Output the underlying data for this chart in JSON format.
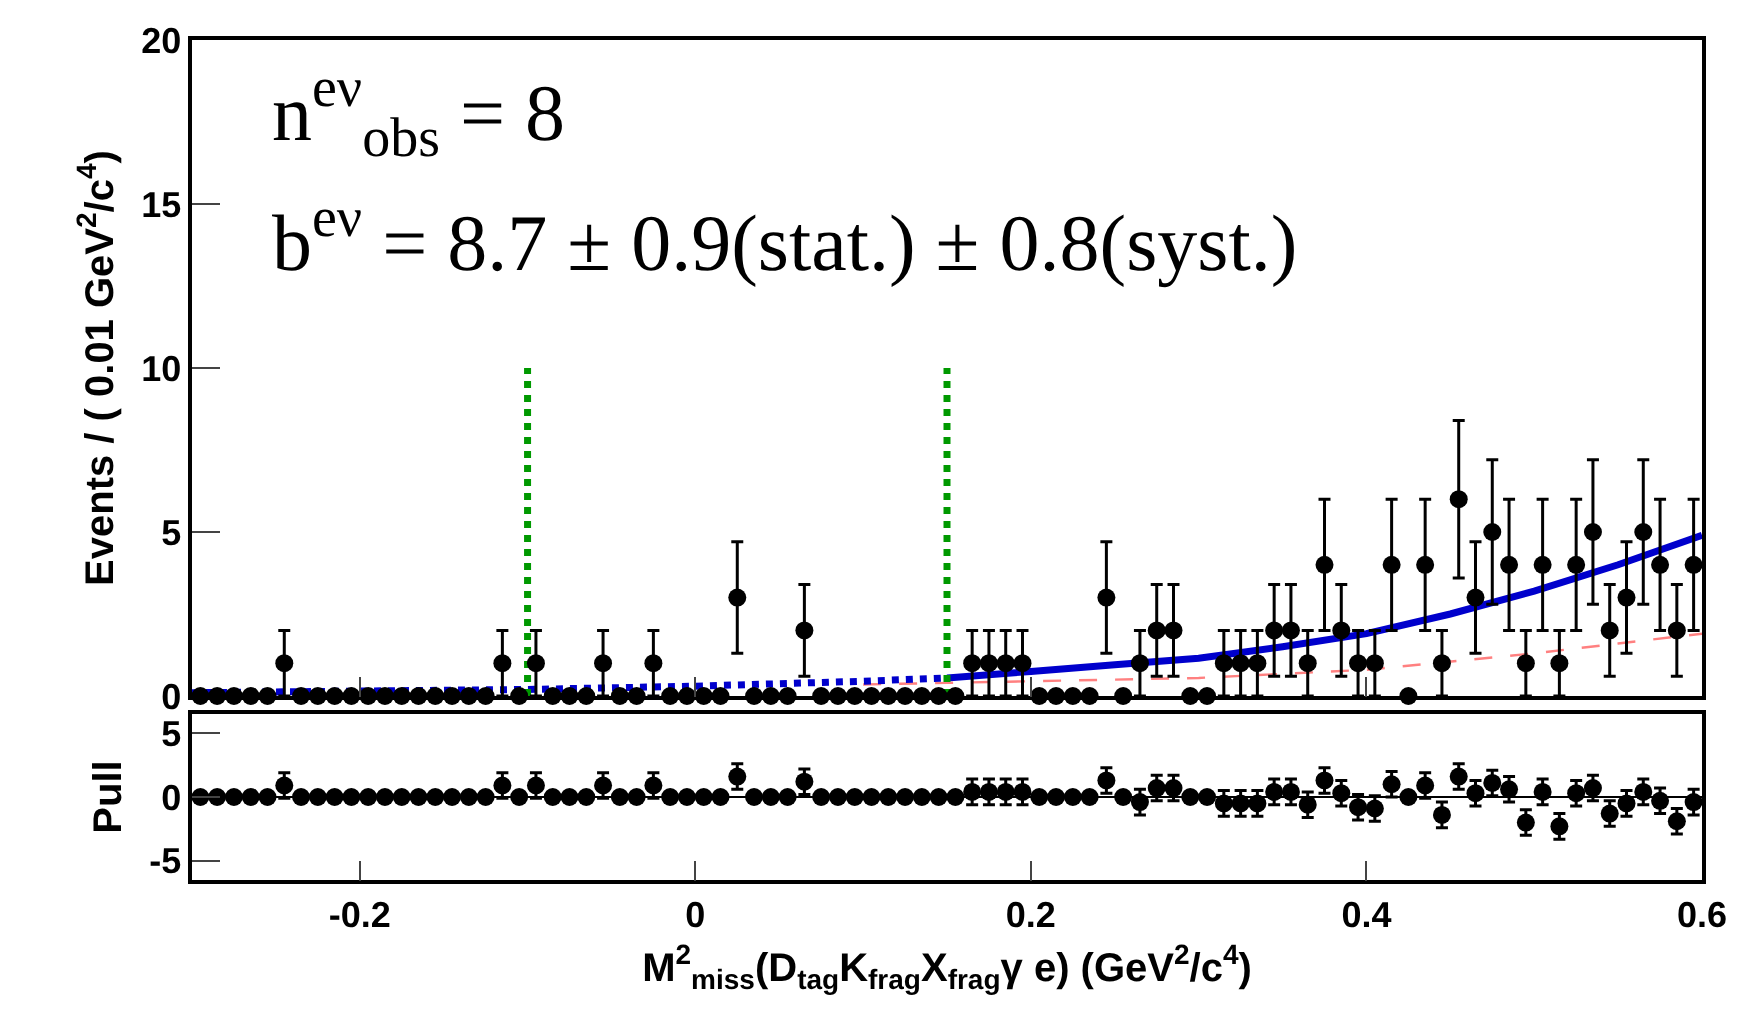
{
  "chart_data": [
    {
      "type": "scatter",
      "ylabel": "Events / ( 0.01 GeV$^{2}$/c$^{4}$)",
      "annotations": [
        "n$^{eν}$$_{obs}$ = 8",
        "b$^{eν}$ = 8.7 ± 0.9(stat.) ± 0.8(syst.)"
      ],
      "x": [
        -0.295,
        -0.285,
        -0.275,
        -0.265,
        -0.255,
        -0.245,
        -0.235,
        -0.225,
        -0.215,
        -0.205,
        -0.195,
        -0.185,
        -0.175,
        -0.165,
        -0.155,
        -0.145,
        -0.135,
        -0.125,
        -0.115,
        -0.105,
        -0.095,
        -0.085,
        -0.075,
        -0.065,
        -0.055,
        -0.045,
        -0.035,
        -0.025,
        -0.015,
        -0.005,
        0.005,
        0.015,
        0.025,
        0.035,
        0.045,
        0.055,
        0.065,
        0.075,
        0.085,
        0.095,
        0.105,
        0.115,
        0.125,
        0.135,
        0.145,
        0.155,
        0.165,
        0.175,
        0.185,
        0.195,
        0.205,
        0.215,
        0.225,
        0.235,
        0.245,
        0.255,
        0.265,
        0.275,
        0.285,
        0.295,
        0.305,
        0.315,
        0.325,
        0.335,
        0.345,
        0.355,
        0.365,
        0.375,
        0.385,
        0.395,
        0.405,
        0.415,
        0.425,
        0.435,
        0.445,
        0.455,
        0.465,
        0.475,
        0.485,
        0.495,
        0.505,
        0.515,
        0.525,
        0.535,
        0.545,
        0.555,
        0.565,
        0.575,
        0.585,
        0.595
      ],
      "series": [
        {
          "marker": "circle",
          "color": "#000000",
          "values": [
            0,
            0,
            0,
            0,
            0,
            1,
            0,
            0,
            0,
            0,
            0,
            0,
            0,
            0,
            0,
            0,
            0,
            0,
            1,
            0,
            1,
            0,
            0,
            0,
            1,
            0,
            0,
            1,
            0,
            0,
            0,
            0,
            3,
            0,
            0,
            0,
            2,
            0,
            0,
            0,
            0,
            0,
            0,
            0,
            0,
            0,
            1,
            1,
            1,
            1,
            0,
            0,
            0,
            0,
            3,
            0,
            1,
            2,
            2,
            0,
            0,
            1,
            1,
            1,
            2,
            2,
            1,
            4,
            2,
            1,
            1,
            4,
            0,
            4,
            1,
            6,
            3,
            5,
            4,
            1,
            4,
            1,
            4,
            5,
            2,
            3,
            5,
            4,
            2,
            4
          ],
          "errors": [
            null,
            null,
            null,
            null,
            null,
            1,
            null,
            null,
            null,
            null,
            null,
            null,
            null,
            null,
            null,
            null,
            null,
            null,
            1,
            null,
            1,
            null,
            null,
            null,
            1,
            null,
            null,
            1,
            null,
            null,
            null,
            null,
            1.7,
            null,
            null,
            null,
            1.4,
            null,
            null,
            null,
            null,
            null,
            null,
            null,
            null,
            null,
            1,
            1,
            1,
            1,
            null,
            null,
            null,
            null,
            1.7,
            null,
            1,
            1.4,
            1.4,
            null,
            null,
            1,
            1,
            1,
            1.4,
            1.4,
            1,
            2,
            1.4,
            1,
            1,
            2,
            null,
            2,
            1,
            2.4,
            1.7,
            2.2,
            2,
            1,
            2,
            1,
            2,
            2.2,
            1.4,
            1.7,
            2.2,
            2,
            1.4,
            2
          ]
        },
        {
          "type": "line",
          "color": "#ff8080",
          "line_style": "dashed",
          "x": [
            0.1,
            0.15,
            0.2,
            0.3,
            0.4,
            0.5,
            0.55,
            0.6
          ],
          "values": [
            0.35,
            0.4,
            0.45,
            0.55,
            0.8,
            1.3,
            1.6,
            1.9
          ]
        },
        {
          "type": "line",
          "color": "#0000cc",
          "line_style": "dotted",
          "x": [
            -0.3,
            -0.2,
            -0.1,
            0,
            0.1,
            0.15
          ],
          "values": [
            0.1,
            0.15,
            0.2,
            0.3,
            0.45,
            0.55
          ]
        },
        {
          "type": "line",
          "color": "#0000cc",
          "line_style": "solid",
          "x": [
            0.15,
            0.2,
            0.25,
            0.3,
            0.35,
            0.4,
            0.45,
            0.5,
            0.55,
            0.6
          ],
          "values": [
            0.55,
            0.75,
            0.95,
            1.15,
            1.5,
            1.9,
            2.5,
            3.2,
            4.0,
            4.9
          ]
        },
        {
          "type": "line",
          "color": "#009900",
          "line_style": "dotted",
          "x": [
            -0.1,
            -0.1
          ],
          "values": [
            0,
            10
          ]
        },
        {
          "type": "line",
          "color": "#009900",
          "line_style": "dotted",
          "x": [
            0.15,
            0.15
          ],
          "values": [
            0,
            10
          ]
        }
      ],
      "xlim": [
        -0.3,
        0.6
      ],
      "xticks": [
        -0.2,
        0,
        0.2,
        0.4,
        0.6
      ],
      "ylim": [
        0,
        20
      ],
      "yticks": [
        0,
        5,
        10,
        15,
        20
      ],
      "tick_labels": "y"
    },
    {
      "type": "scatter",
      "ylabel": "Pull",
      "xlabel": "M$^{2}$$_{miss}$(D$_{tag}$K$_{frag}$X$_{frag}$γ e) (GeV$^{2}$/c$^{4}$)",
      "x": [
        -0.295,
        -0.285,
        -0.275,
        -0.265,
        -0.255,
        -0.245,
        -0.235,
        -0.225,
        -0.215,
        -0.205,
        -0.195,
        -0.185,
        -0.175,
        -0.165,
        -0.155,
        -0.145,
        -0.135,
        -0.125,
        -0.115,
        -0.105,
        -0.095,
        -0.085,
        -0.075,
        -0.065,
        -0.055,
        -0.045,
        -0.035,
        -0.025,
        -0.015,
        -0.005,
        0.005,
        0.015,
        0.025,
        0.035,
        0.045,
        0.055,
        0.065,
        0.075,
        0.085,
        0.095,
        0.105,
        0.115,
        0.125,
        0.135,
        0.145,
        0.155,
        0.165,
        0.175,
        0.185,
        0.195,
        0.205,
        0.215,
        0.225,
        0.235,
        0.245,
        0.255,
        0.265,
        0.275,
        0.285,
        0.295,
        0.305,
        0.315,
        0.325,
        0.335,
        0.345,
        0.355,
        0.365,
        0.375,
        0.385,
        0.395,
        0.405,
        0.415,
        0.425,
        0.435,
        0.445,
        0.455,
        0.465,
        0.475,
        0.485,
        0.495,
        0.505,
        0.515,
        0.525,
        0.535,
        0.545,
        0.555,
        0.565,
        0.575,
        0.585,
        0.595
      ],
      "series": [
        {
          "marker": "circle",
          "color": "#000000",
          "values": [
            0,
            0,
            0,
            0,
            0,
            0.9,
            0,
            0,
            0,
            0,
            0,
            0,
            0,
            0,
            0,
            0,
            0,
            0,
            0.9,
            0,
            0.9,
            0,
            0,
            0,
            0.9,
            0,
            0,
            0.9,
            0,
            0,
            0,
            0,
            1.6,
            0,
            0,
            0,
            1.2,
            0,
            0,
            0,
            0,
            0,
            0,
            0,
            0,
            0,
            0.4,
            0.4,
            0.4,
            0.4,
            0,
            0,
            0,
            0,
            1.3,
            0,
            -0.4,
            0.7,
            0.7,
            0,
            0,
            -0.5,
            -0.5,
            -0.5,
            0.4,
            0.4,
            -0.6,
            1.3,
            0.3,
            -0.8,
            -0.9,
            1.0,
            0,
            0.9,
            -1.4,
            1.6,
            0.3,
            1.1,
            0.6,
            -2.0,
            0.4,
            -2.3,
            0.3,
            0.7,
            -1.3,
            -0.5,
            0.4,
            -0.3,
            -1.9,
            -0.4
          ],
          "errors": [
            null,
            null,
            null,
            null,
            null,
            1,
            null,
            null,
            null,
            null,
            null,
            null,
            null,
            null,
            null,
            null,
            null,
            null,
            1,
            null,
            1,
            null,
            null,
            null,
            1,
            null,
            null,
            1,
            null,
            null,
            null,
            null,
            1,
            null,
            null,
            null,
            1,
            null,
            null,
            null,
            null,
            null,
            null,
            null,
            null,
            null,
            1,
            1,
            1,
            1,
            null,
            null,
            null,
            null,
            1,
            null,
            1,
            1,
            1,
            null,
            null,
            1,
            1,
            1,
            1,
            1,
            1,
            1,
            1,
            1,
            1,
            1,
            null,
            1,
            1,
            1,
            1,
            1,
            1,
            1,
            1,
            1,
            1,
            1,
            1,
            1,
            1,
            1,
            1,
            1
          ]
        }
      ],
      "ref_lines": [
        {
          "axis": "y",
          "value": 0,
          "color": "#000000"
        }
      ],
      "xlim": [
        -0.3,
        0.6
      ],
      "xticks": [
        -0.2,
        0,
        0.2,
        0.4,
        0.6
      ],
      "ylim": [
        -6.5,
        6.5
      ],
      "yticks": [
        -5,
        0,
        5
      ]
    }
  ]
}
